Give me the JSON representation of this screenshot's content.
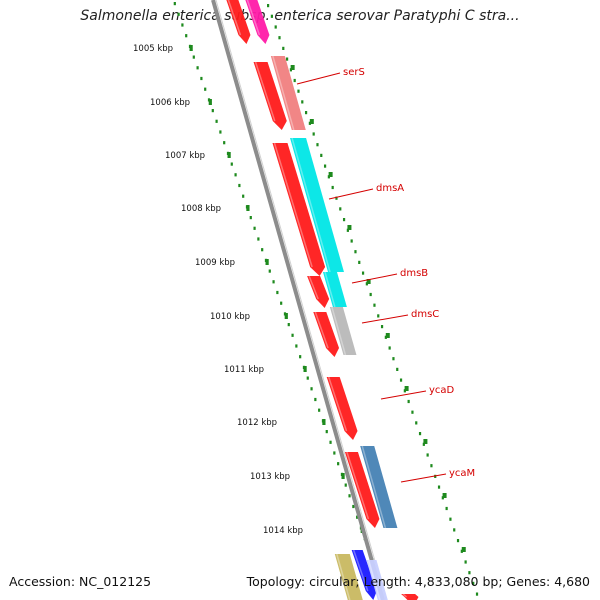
{
  "title": "Salmonella enterica subsp. enterica serovar Paratyphi C stra...",
  "accession": "Accession: NC_012125",
  "summary": "Topology: circular; Length: 4,833,080 bp; Genes: 4,680",
  "colors": {
    "backbone": "#8c8c8c",
    "tick": "#1e8a1e",
    "cds_red": "#ff1a1a",
    "label_red": "#d40000",
    "cyan": "#00e6e6",
    "salmon": "#f08080",
    "magenta": "#ff1aa8",
    "gray": "#b8b8b8",
    "steel_blue": "#4682b4",
    "blue": "#1a1aff",
    "olive": "#c8b860"
  },
  "kbp_labels": [
    "1005 kbp",
    "1006 kbp",
    "1007 kbp",
    "1008 kbp",
    "1009 kbp",
    "1010 kbp",
    "1011 kbp",
    "1012 kbp",
    "1013 kbp",
    "1014 kbp"
  ],
  "gene_labels": [
    "serS",
    "dmsA",
    "dmsB",
    "dmsC",
    "ycaD",
    "ycaM"
  ]
}
